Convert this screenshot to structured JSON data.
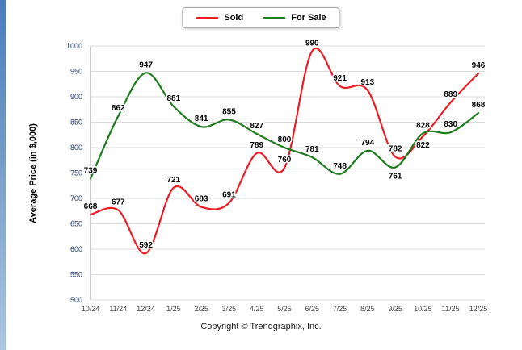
{
  "chart_data": {
    "type": "line",
    "categories": [
      "10/24",
      "11/24",
      "12/24",
      "1/25",
      "2/25",
      "3/25",
      "4/25",
      "5/25",
      "6/25",
      "7/25",
      "8/25",
      "9/25",
      "10/25",
      "11/25",
      "12/25"
    ],
    "series": [
      {
        "name": "Sold",
        "color": "#ed1c24",
        "values": [
          668,
          677,
          592,
          721,
          683,
          691,
          789,
          760,
          990,
          921,
          913,
          782,
          822,
          889,
          946
        ]
      },
      {
        "name": "For Sale",
        "color": "#1e7b1e",
        "values": [
          739,
          862,
          947,
          881,
          841,
          855,
          827,
          800,
          781,
          748,
          794,
          761,
          828,
          830,
          868
        ]
      }
    ],
    "title": "",
    "xlabel": "",
    "ylabel": "Average Price (in $,000)",
    "ylim": [
      500,
      1000
    ],
    "ytick_step": 50,
    "grid": true,
    "legend_position": "top-center",
    "colors": {
      "grid": "#d9d9d9",
      "axis": "#9a9a9a",
      "tick_labels": "#1f3864",
      "x_labels": "#444444",
      "point_labels": "#000000"
    }
  },
  "footer": {
    "copyright": "Copyright © Trendgraphix, Inc."
  }
}
